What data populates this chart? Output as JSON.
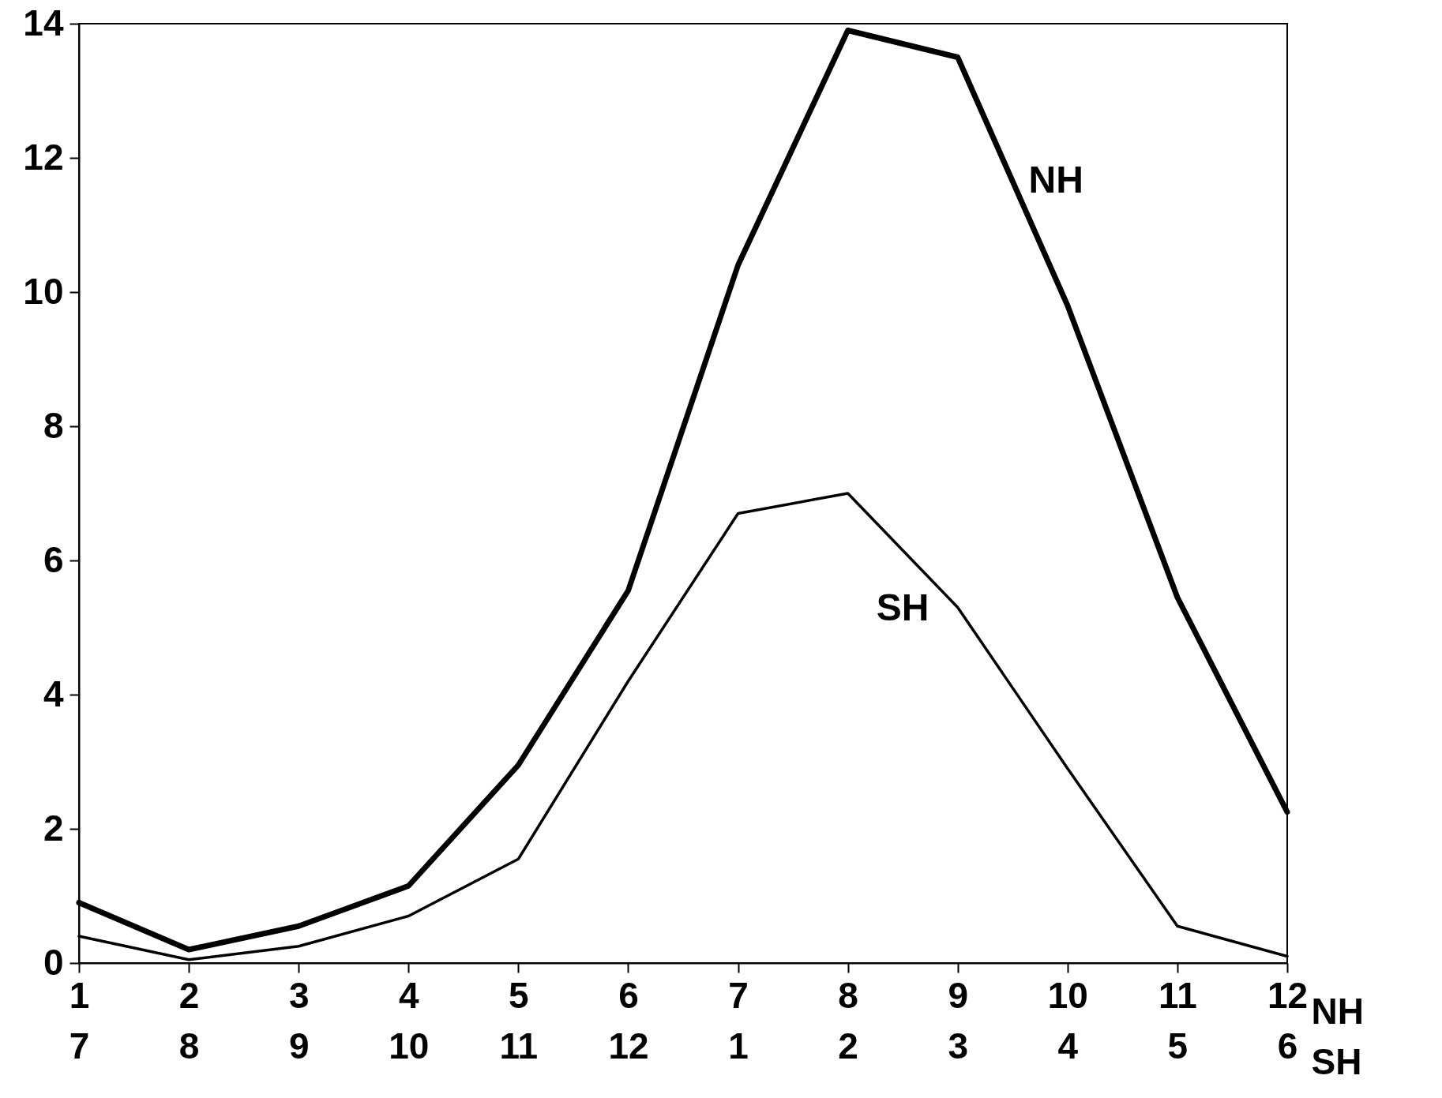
{
  "chart_data": {
    "type": "line",
    "xlabel": "NH",
    "x2label": "SH",
    "categories": [
      "1\n7",
      "2\n8",
      "3\n9",
      "4\n10",
      "5\n11",
      "6\n12",
      "7\n1",
      "8\n2",
      "9\n3",
      "10\n4",
      "11\n5",
      "12\n6"
    ],
    "series": [
      {
        "name": "NH",
        "color": "#000000",
        "values": [
          0.9,
          0.2,
          0.55,
          1.15,
          2.95,
          5.55,
          10.4,
          13.9,
          13.5,
          9.8,
          5.45,
          2.25
        ]
      },
      {
        "name": "SH",
        "color": "#000000",
        "values": [
          0.4,
          0.05,
          0.25,
          0.7,
          1.55,
          4.2,
          6.7,
          7.0,
          5.3,
          2.9,
          0.55,
          0.1
        ]
      }
    ],
    "ylim": [
      0,
      14
    ],
    "yticks": [
      0,
      2,
      4,
      6,
      8,
      10,
      12,
      14
    ],
    "grid": false,
    "marker": "none",
    "line_style": "solid"
  }
}
